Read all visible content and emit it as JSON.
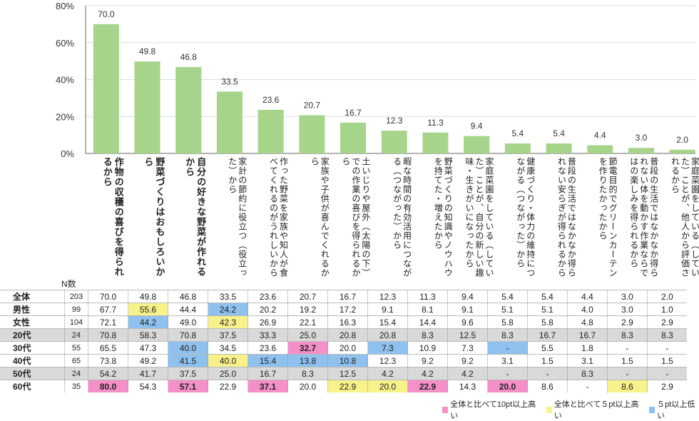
{
  "chart_data": {
    "type": "bar",
    "yticks": [
      "0%",
      "20%",
      "40%",
      "60%",
      "80%"
    ],
    "ylim": [
      0,
      80
    ],
    "categories": [
      "作物の収穫の喜びを得られるから",
      "野菜づくりはおもしろいから",
      "自分の好きな野菜が作れるから",
      "家計の節約に役立つ（役立った）から",
      "作った野菜を家族や知人が食べてくれるのがうれしいから",
      "家族や子供が喜んでくれるから",
      "土いじりや屋外（太陽の下）での作業の喜びを得られるから",
      "暇な時間の有効活用につながる（つながった）から",
      "野菜づくりの知識やノウハウを持てた・増えたから",
      "家庭菜園をしている（していた）ことが、自分の新しい趣味・生きがいになったから",
      "健康づくり・体力の維持につながる（つながった）から",
      "普段の生活ではなかなか得られない安らぎが得られるから",
      "節電目的でグリーンカーテンを作りたかったから",
      "普段の生活ではなかなか得られない体を動かす作業ならではの楽しみを得られるから",
      "家庭菜園をしている（していた）ことが、他人から評価されるから"
    ],
    "values": [
      70.0,
      49.8,
      46.8,
      33.5,
      23.6,
      20.7,
      16.7,
      12.3,
      11.3,
      9.4,
      5.4,
      5.4,
      4.4,
      3.0,
      2.0
    ],
    "value_labels": [
      "70.0",
      "49.8",
      "46.8",
      "33.5",
      "23.6",
      "20.7",
      "16.7",
      "12.3",
      "11.3",
      "9.4",
      "5.4",
      "5.4",
      "4.4",
      "3.0",
      "2.0"
    ],
    "bar_color": "#a6d48b",
    "n_header": "N数",
    "rows": [
      {
        "label": "全体",
        "n": "203",
        "values": [
          "70.0",
          "49.8",
          "46.8",
          "33.5",
          "23.6",
          "20.7",
          "16.7",
          "12.3",
          "11.3",
          "9.4",
          "5.4",
          "5.4",
          "4.4",
          "3.0",
          "2.0"
        ],
        "hl": [
          "",
          "",
          "",
          "",
          "",
          "",
          "",
          "",
          "",
          "",
          "",
          "",
          "",
          "",
          ""
        ],
        "gray": false
      },
      {
        "label": "男性",
        "n": "99",
        "values": [
          "67.7",
          "55.6",
          "44.4",
          "24.2",
          "20.2",
          "19.2",
          "17.2",
          "9.1",
          "8.1",
          "9.1",
          "5.1",
          "5.1",
          "4.0",
          "3.0",
          "1.0"
        ],
        "hl": [
          "",
          "yellow",
          "",
          "blue",
          "",
          "",
          "",
          "",
          "",
          "",
          "",
          "",
          "",
          "",
          ""
        ],
        "gray": false
      },
      {
        "label": "女性",
        "n": "104",
        "values": [
          "72.1",
          "44.2",
          "49.0",
          "42.3",
          "26.9",
          "22.1",
          "16.3",
          "15.4",
          "14.4",
          "9.6",
          "5.8",
          "5.8",
          "4.8",
          "2.9",
          "2.9"
        ],
        "hl": [
          "",
          "blue",
          "",
          "yellow",
          "",
          "",
          "",
          "",
          "",
          "",
          "",
          "",
          "",
          "",
          ""
        ],
        "gray": false
      },
      {
        "label": "20代",
        "n": "24",
        "values": [
          "70.8",
          "58.3",
          "70.8",
          "37.5",
          "33.3",
          "25.0",
          "20.8",
          "20.8",
          "8.3",
          "12.5",
          "8.3",
          "16.7",
          "16.7",
          "8.3",
          "8.3"
        ],
        "hl": [
          "",
          "",
          "",
          "",
          "",
          "",
          "",
          "",
          "",
          "",
          "",
          "",
          "",
          "",
          ""
        ],
        "gray": true
      },
      {
        "label": "30代",
        "n": "55",
        "values": [
          "65.5",
          "47.3",
          "40.0",
          "34.5",
          "23.6",
          "32.7",
          "20.0",
          "7.3",
          "10.9",
          "7.3",
          "-",
          "5.5",
          "1.8",
          "-",
          "-"
        ],
        "hl": [
          "",
          "",
          "blue",
          "",
          "",
          "pink",
          "",
          "blue",
          "",
          "",
          "blue",
          "",
          "",
          "",
          ""
        ],
        "gray": false
      },
      {
        "label": "40代",
        "n": "65",
        "values": [
          "73.8",
          "49.2",
          "41.5",
          "40.0",
          "15.4",
          "13.8",
          "10.8",
          "12.3",
          "9.2",
          "9.2",
          "3.1",
          "1.5",
          "3.1",
          "1.5",
          "1.5"
        ],
        "hl": [
          "",
          "",
          "blue",
          "yellow",
          "blue",
          "blue",
          "blue",
          "",
          "",
          "",
          "",
          "",
          "",
          "",
          ""
        ],
        "gray": false
      },
      {
        "label": "50代",
        "n": "24",
        "values": [
          "54.2",
          "41.7",
          "37.5",
          "25.0",
          "16.7",
          "8.3",
          "12.5",
          "4.2",
          "4.2",
          "4.2",
          "-",
          "-",
          "8.3",
          "-",
          "-"
        ],
        "hl": [
          "",
          "",
          "",
          "",
          "",
          "",
          "",
          "",
          "",
          "",
          "",
          "",
          "",
          "",
          ""
        ],
        "gray": true
      },
      {
        "label": "60代",
        "n": "35",
        "values": [
          "80.0",
          "54.3",
          "57.1",
          "22.9",
          "37.1",
          "20.0",
          "22.9",
          "20.0",
          "22.9",
          "14.3",
          "20.0",
          "8.6",
          "-",
          "8.6",
          "2.9"
        ],
        "hl": [
          "pink",
          "",
          "pink",
          "",
          "pink",
          "",
          "yellow",
          "yellow",
          "pink",
          "",
          "pink",
          "",
          "",
          "yellow",
          ""
        ],
        "gray": false
      }
    ],
    "legend": [
      {
        "label": "全体と比べて10pt以上高い",
        "color": "#f48fc7"
      },
      {
        "label": "全体と比べて５pt以上高い",
        "color": "#f7f28a"
      },
      {
        "label": "５pt以上低い",
        "color": "#8ec1ee"
      }
    ]
  }
}
